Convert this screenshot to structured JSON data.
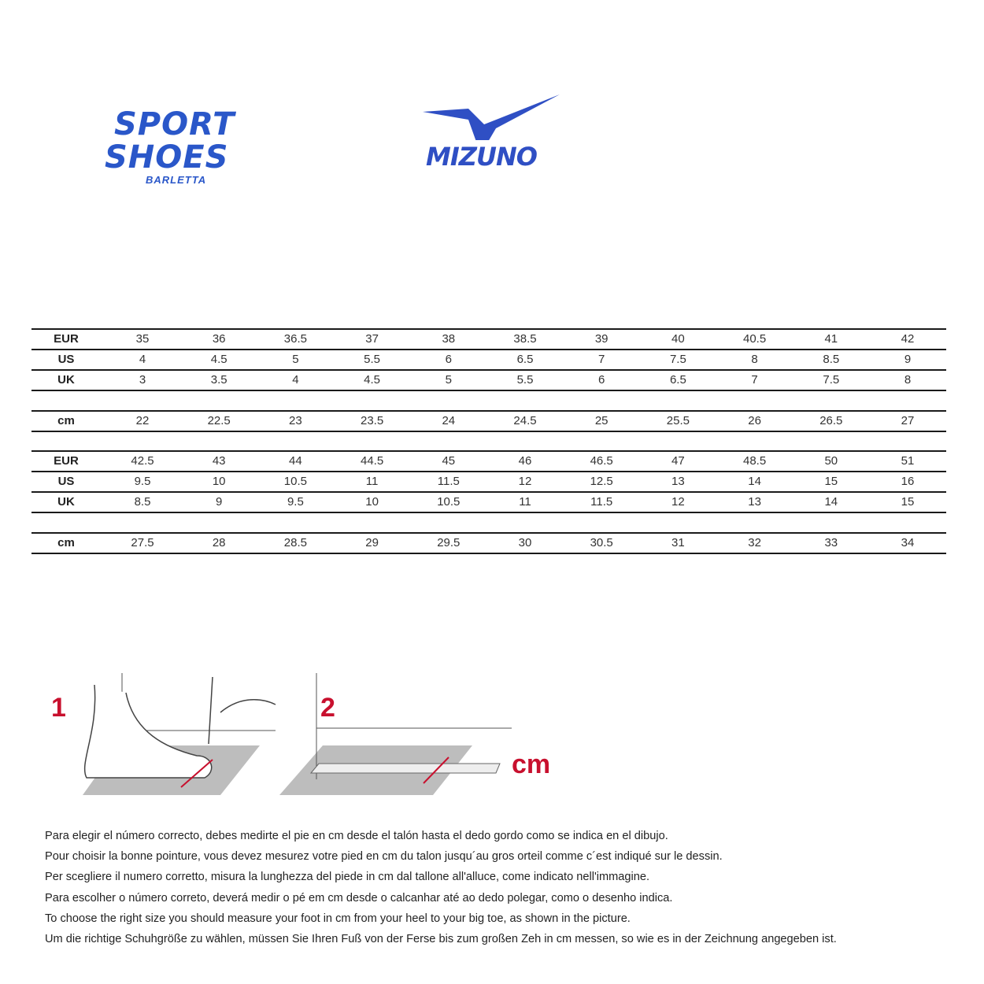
{
  "logos": {
    "shop": {
      "line1": "SPORT",
      "line2": "SHOES",
      "sub": "BARLETTA",
      "color": "#2a57c9"
    },
    "brand": {
      "name": "MIZUNO",
      "color": "#2f4fc4"
    }
  },
  "size_table": {
    "block1": {
      "rows": [
        {
          "label": "EUR",
          "values": [
            "35",
            "36",
            "36.5",
            "37",
            "38",
            "38.5",
            "39",
            "40",
            "40.5",
            "41",
            "42"
          ]
        },
        {
          "label": "US",
          "values": [
            "4",
            "4.5",
            "5",
            "5.5",
            "6",
            "6.5",
            "7",
            "7.5",
            "8",
            "8.5",
            "9"
          ]
        },
        {
          "label": "UK",
          "values": [
            "3",
            "3.5",
            "4",
            "4.5",
            "5",
            "5.5",
            "6",
            "6.5",
            "7",
            "7.5",
            "8"
          ]
        }
      ],
      "cm": {
        "label": "cm",
        "values": [
          "22",
          "22.5",
          "23",
          "23.5",
          "24",
          "24.5",
          "25",
          "25.5",
          "26",
          "26.5",
          "27"
        ]
      }
    },
    "block2": {
      "rows": [
        {
          "label": "EUR",
          "values": [
            "42.5",
            "43",
            "44",
            "44.5",
            "45",
            "46",
            "46.5",
            "47",
            "48.5",
            "50",
            "51"
          ]
        },
        {
          "label": "US",
          "values": [
            "9.5",
            "10",
            "10.5",
            "11",
            "11.5",
            "12",
            "12.5",
            "13",
            "14",
            "15",
            "16"
          ]
        },
        {
          "label": "UK",
          "values": [
            "8.5",
            "9",
            "9.5",
            "10",
            "10.5",
            "11",
            "11.5",
            "12",
            "13",
            "14",
            "15"
          ]
        }
      ],
      "cm": {
        "label": "cm",
        "values": [
          "27.5",
          "28",
          "28.5",
          "29",
          "29.5",
          "30",
          "30.5",
          "31",
          "32",
          "33",
          "34"
        ]
      }
    }
  },
  "illustration": {
    "step1": "1",
    "step2": "2",
    "unit": "cm",
    "accent": "#c8102e"
  },
  "instructions": [
    "Para elegir el número correcto, debes medirte el pie en cm desde el talón hasta el dedo gordo como se indica en el dibujo.",
    "Pour choisir la bonne pointure, vous devez mesurez votre pied en cm du talon jusqu´au gros orteil comme c´est indiqué sur le dessin.",
    "Per scegliere il numero corretto, misura la lunghezza del piede in cm dal tallone all'alluce, come indicato nell'immagine.",
    "Para escolher o número correto, deverá medir o pé em cm desde o calcanhar até ao dedo polegar, como o desenho indica.",
    "To choose the right size you should measure your foot in cm from your heel to your big toe, as shown in the picture.",
    "Um die richtige Schuhgröße zu wählen, müssen Sie Ihren Fuß von der Ferse bis zum großen Zeh in cm messen, so wie es in der Zeichnung angegeben ist."
  ]
}
